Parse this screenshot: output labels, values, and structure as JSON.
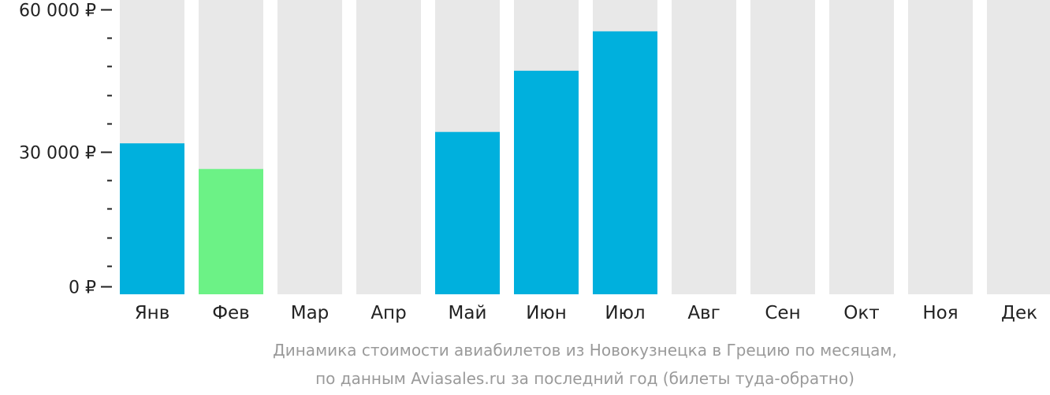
{
  "chart_data": {
    "type": "bar",
    "categories": [
      "Янв",
      "Фев",
      "Мар",
      "Апр",
      "Май",
      "Июн",
      "Июл",
      "Авг",
      "Сен",
      "Окт",
      "Ноя",
      "Дек"
    ],
    "values": [
      31800,
      26400,
      null,
      null,
      34200,
      47100,
      55400,
      null,
      null,
      null,
      null,
      null
    ],
    "highlight_category": "Фев",
    "ylim": [
      0,
      62000
    ],
    "y_ticks": [
      {
        "value": 0,
        "label": "0 ₽"
      },
      {
        "value": 30000,
        "label": "30 000 ₽"
      },
      {
        "value": 60000,
        "label": "60 000 ₽"
      }
    ],
    "y_minor_tick_step": 6000,
    "caption_lines": [
      "Динамика стоимости авиабилетов из Новокузнецка в Грецию по месяцам,",
      "по данным Aviasales.ru за последний год (билеты туда-обратно)"
    ],
    "colors": {
      "bar": "#00b0dd",
      "highlight_bar": "#6cf286",
      "background_bar": "#e8e8e8",
      "text": "#222222",
      "caption": "#9a9a9a",
      "axis": "#222222"
    },
    "grid": false,
    "legend": "none"
  }
}
